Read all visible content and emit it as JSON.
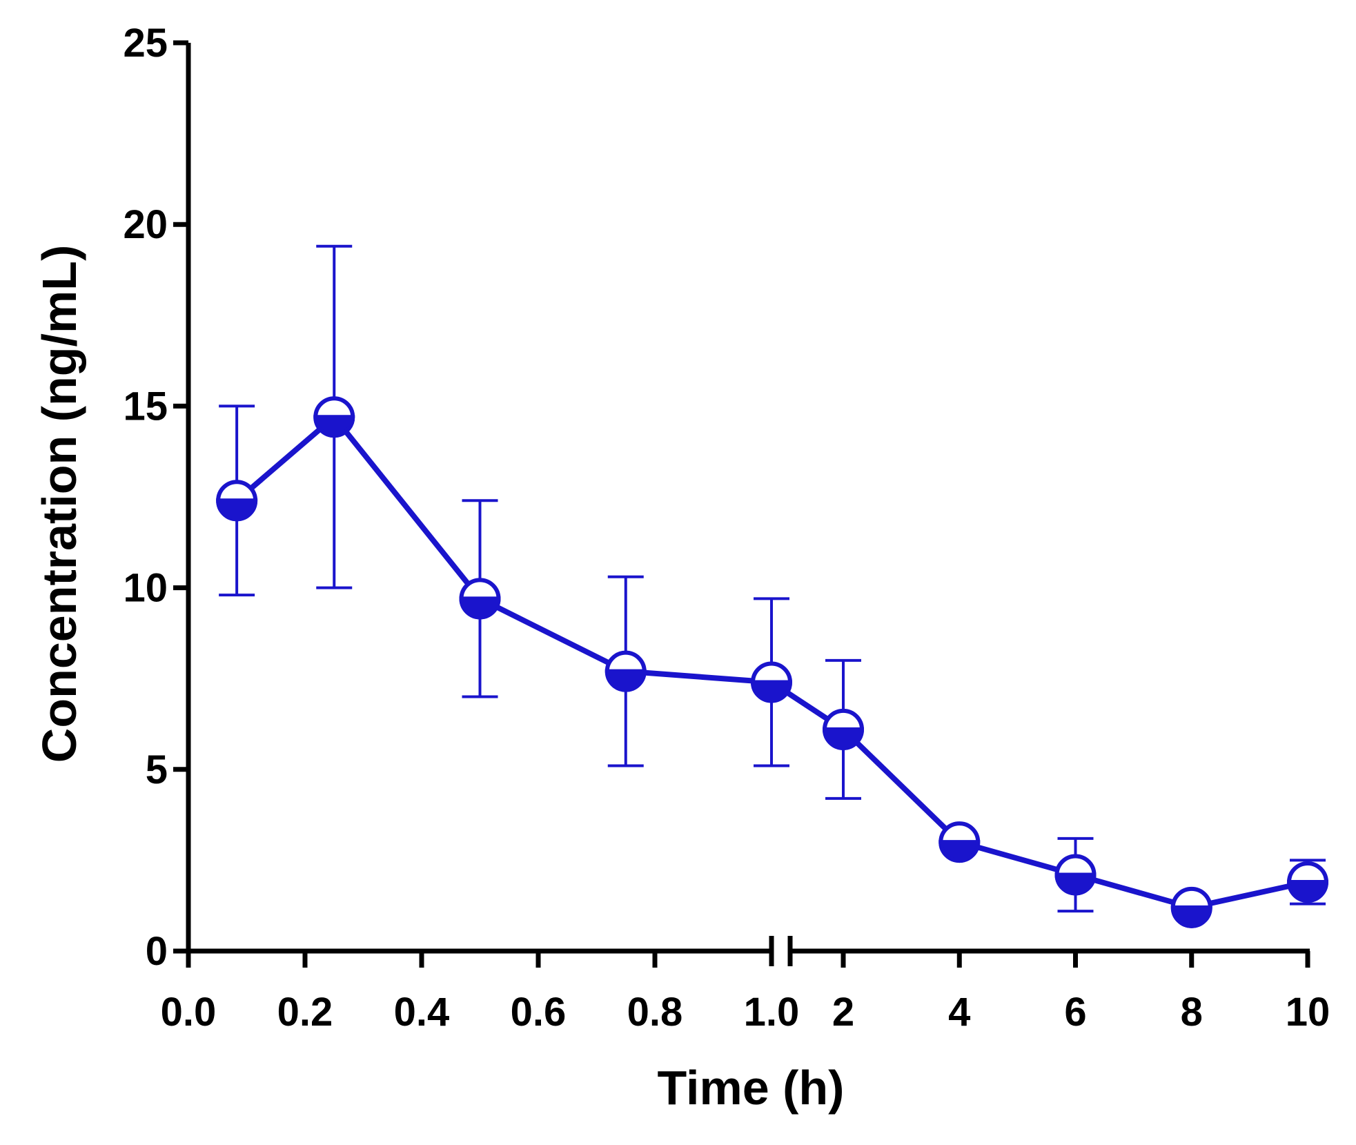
{
  "chart_data": {
    "type": "line",
    "title": "",
    "xlabel": "Time (h)",
    "ylabel": "Concentration (ng/mL)",
    "ylim": [
      0,
      25
    ],
    "yticks": [
      0,
      5,
      10,
      15,
      20,
      25
    ],
    "x_break_at": 1.0,
    "x_segments": [
      {
        "range": [
          0,
          1.0
        ],
        "ticks": [
          0,
          0.2,
          0.4,
          0.6,
          0.8,
          1.0
        ],
        "tick_labels": [
          "0.0",
          "0.2",
          "0.4",
          "0.6",
          "0.8",
          "1.0"
        ]
      },
      {
        "range": [
          1.0,
          10
        ],
        "ticks": [
          2,
          4,
          6,
          8,
          10
        ],
        "tick_labels": [
          "2",
          "4",
          "6",
          "8",
          "10"
        ]
      }
    ],
    "series": [
      {
        "name": "Concentration",
        "color": "#1a14cc",
        "x": [
          0.083,
          0.25,
          0.5,
          0.75,
          1.0,
          2,
          4,
          6,
          8,
          10
        ],
        "y": [
          12.4,
          14.7,
          9.7,
          7.7,
          7.4,
          6.1,
          3.0,
          2.1,
          1.2,
          1.9
        ],
        "error": [
          2.6,
          4.7,
          2.7,
          2.6,
          2.3,
          1.9,
          0.0,
          1.0,
          0.0,
          0.6
        ]
      }
    ]
  }
}
